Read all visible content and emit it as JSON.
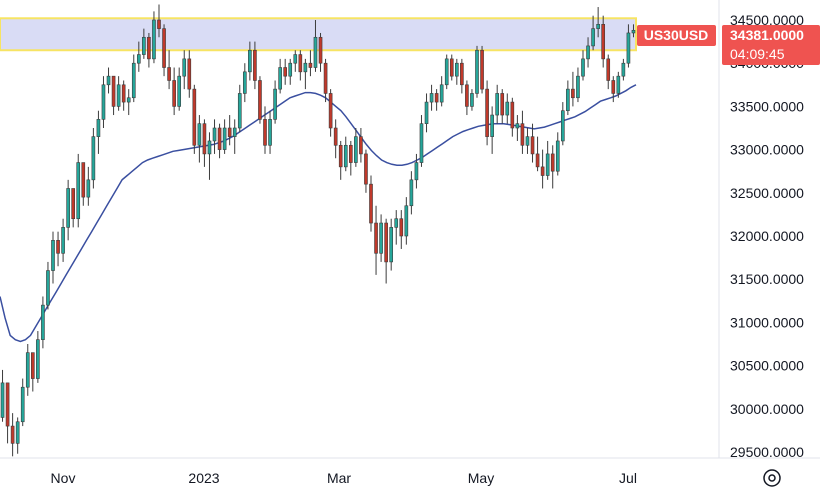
{
  "chart_data": {
    "type": "candlestick",
    "symbol": "US30USD",
    "last_price": "34381.0000",
    "countdown": "04:09:45",
    "y_range": [
      29450,
      34700
    ],
    "y_ticks": [
      "29500.0000",
      "30000.0000",
      "30500.0000",
      "31000.0000",
      "31500.0000",
      "32000.0000",
      "32500.0000",
      "33000.0000",
      "33500.0000",
      "34000.0000",
      "34500.0000"
    ],
    "x_ticks": [
      "Nov",
      "2023",
      "Mar",
      "May",
      "Jul"
    ],
    "highlight_zone": [
      34150,
      34520
    ],
    "colors": {
      "up": "#26a69a",
      "down": "#c0392b",
      "ma": "#3a4fa0",
      "zone_fill": "#d9dcf5",
      "zone_border": "#f7e463",
      "price_label": "#ef5350",
      "ticker_label": "#ef5350"
    },
    "candles": [
      [
        29900,
        30450,
        29850,
        30300
      ],
      [
        30300,
        30300,
        29600,
        29800
      ],
      [
        29800,
        29950,
        29450,
        29600
      ],
      [
        29600,
        29900,
        29480,
        29850
      ],
      [
        29850,
        30350,
        29800,
        30250
      ],
      [
        30250,
        30750,
        30150,
        30650
      ],
      [
        30650,
        30650,
        30200,
        30350
      ],
      [
        30350,
        30900,
        30300,
        30800
      ],
      [
        30800,
        31300,
        30700,
        31200
      ],
      [
        31200,
        31700,
        31150,
        31600
      ],
      [
        31600,
        32050,
        31450,
        31950
      ],
      [
        31950,
        32050,
        31650,
        31800
      ],
      [
        31800,
        32200,
        31700,
        32100
      ],
      [
        32100,
        32650,
        31950,
        32550
      ],
      [
        32550,
        32550,
        32100,
        32200
      ],
      [
        32200,
        32950,
        32100,
        32850
      ],
      [
        32850,
        32850,
        32350,
        32450
      ],
      [
        32450,
        32800,
        32350,
        32650
      ],
      [
        32650,
        33250,
        32550,
        33150
      ],
      [
        33150,
        33450,
        32950,
        33350
      ],
      [
        33350,
        33850,
        33250,
        33750
      ],
      [
        33750,
        33950,
        33650,
        33850
      ],
      [
        33850,
        33850,
        33400,
        33500
      ],
      [
        33500,
        33850,
        33450,
        33750
      ],
      [
        33750,
        33800,
        33450,
        33550
      ],
      [
        33550,
        33700,
        33400,
        33600
      ],
      [
        33600,
        34100,
        33550,
        34000
      ],
      [
        34000,
        34250,
        33900,
        34100
      ],
      [
        34100,
        34400,
        34050,
        34300
      ],
      [
        34300,
        34350,
        33950,
        34050
      ],
      [
        34050,
        34600,
        34000,
        34500
      ],
      [
        34500,
        34680,
        34300,
        34400
      ],
      [
        34400,
        34450,
        33850,
        33950
      ],
      [
        33950,
        34150,
        33700,
        33800
      ],
      [
        33800,
        33950,
        33400,
        33500
      ],
      [
        33500,
        33950,
        33450,
        33850
      ],
      [
        33850,
        34150,
        33700,
        34050
      ],
      [
        34050,
        34150,
        33600,
        33700
      ],
      [
        33700,
        33750,
        32950,
        33050
      ],
      [
        33050,
        33400,
        32850,
        33300
      ],
      [
        33300,
        33350,
        32800,
        32950
      ],
      [
        32950,
        33200,
        32650,
        33100
      ],
      [
        33100,
        33350,
        32950,
        33250
      ],
      [
        33250,
        33300,
        32900,
        33000
      ],
      [
        33000,
        33350,
        32950,
        33250
      ],
      [
        33250,
        33400,
        33050,
        33150
      ],
      [
        33150,
        33350,
        32950,
        33250
      ],
      [
        33250,
        33750,
        33200,
        33650
      ],
      [
        33650,
        34000,
        33550,
        33900
      ],
      [
        33900,
        34250,
        33800,
        34150
      ],
      [
        34150,
        34250,
        33700,
        33800
      ],
      [
        33800,
        33850,
        33300,
        33350
      ],
      [
        33350,
        33500,
        32950,
        33050
      ],
      [
        33050,
        33450,
        32950,
        33350
      ],
      [
        33350,
        33800,
        33300,
        33700
      ],
      [
        33700,
        34050,
        33650,
        33950
      ],
      [
        33950,
        34050,
        33750,
        33850
      ],
      [
        33850,
        34050,
        33750,
        34000
      ],
      [
        34000,
        34150,
        33900,
        34100
      ],
      [
        34100,
        34150,
        33800,
        33900
      ],
      [
        33900,
        34050,
        33700,
        34000
      ],
      [
        34000,
        34150,
        33850,
        33950
      ],
      [
        33950,
        34500,
        33900,
        34300
      ],
      [
        34300,
        34350,
        33900,
        34000
      ],
      [
        34000,
        34050,
        33550,
        33650
      ],
      [
        33650,
        33700,
        33150,
        33250
      ],
      [
        33250,
        33350,
        32900,
        33050
      ],
      [
        33050,
        33100,
        32650,
        32800
      ],
      [
        32800,
        33150,
        32750,
        33050
      ],
      [
        33050,
        33100,
        32700,
        32850
      ],
      [
        32850,
        33250,
        32800,
        33150
      ],
      [
        33150,
        33250,
        32850,
        32950
      ],
      [
        32950,
        33000,
        32500,
        32600
      ],
      [
        32600,
        32700,
        32050,
        32150
      ],
      [
        32150,
        32350,
        31550,
        31800
      ],
      [
        31800,
        32250,
        31700,
        32150
      ],
      [
        32150,
        32200,
        31450,
        31700
      ],
      [
        31700,
        32200,
        31600,
        32100
      ],
      [
        32100,
        32300,
        31900,
        32200
      ],
      [
        32200,
        32300,
        31850,
        32000
      ],
      [
        32000,
        32450,
        31900,
        32350
      ],
      [
        32350,
        32750,
        32250,
        32650
      ],
      [
        32650,
        32950,
        32550,
        32850
      ],
      [
        32850,
        33400,
        32800,
        33300
      ],
      [
        33300,
        33650,
        33200,
        33550
      ],
      [
        33550,
        33750,
        33450,
        33650
      ],
      [
        33650,
        33700,
        33450,
        33550
      ],
      [
        33550,
        33850,
        33500,
        33750
      ],
      [
        33750,
        34100,
        33700,
        34050
      ],
      [
        34050,
        34100,
        33800,
        33850
      ],
      [
        33850,
        34050,
        33750,
        34000
      ],
      [
        34000,
        34050,
        33650,
        33750
      ],
      [
        33750,
        33800,
        33400,
        33500
      ],
      [
        33500,
        33700,
        33450,
        33650
      ],
      [
        33650,
        34200,
        33600,
        34150
      ],
      [
        34150,
        34200,
        33650,
        33700
      ],
      [
        33700,
        33800,
        33050,
        33150
      ],
      [
        33150,
        33500,
        32950,
        33400
      ],
      [
        33400,
        33750,
        33300,
        33650
      ],
      [
        33650,
        33700,
        33300,
        33400
      ],
      [
        33400,
        33650,
        33300,
        33550
      ],
      [
        33550,
        33600,
        33150,
        33250
      ],
      [
        33250,
        33400,
        33100,
        33300
      ],
      [
        33300,
        33450,
        32950,
        33050
      ],
      [
        33050,
        33250,
        32950,
        33150
      ],
      [
        33150,
        33300,
        32850,
        32950
      ],
      [
        32950,
        33150,
        32750,
        32800
      ],
      [
        32800,
        33000,
        32550,
        32700
      ],
      [
        32700,
        33100,
        32650,
        32950
      ],
      [
        32950,
        33050,
        32550,
        32750
      ],
      [
        32750,
        33200,
        32700,
        33100
      ],
      [
        33100,
        33550,
        33050,
        33450
      ],
      [
        33450,
        33800,
        33400,
        33700
      ],
      [
        33700,
        33900,
        33500,
        33600
      ],
      [
        33600,
        33950,
        33550,
        33850
      ],
      [
        33850,
        34150,
        33800,
        34050
      ],
      [
        34050,
        34300,
        33950,
        34200
      ],
      [
        34200,
        34550,
        34150,
        34400
      ],
      [
        34400,
        34650,
        34300,
        34450
      ],
      [
        34450,
        34550,
        33950,
        34050
      ],
      [
        34050,
        34100,
        33700,
        33800
      ],
      [
        33800,
        33850,
        33550,
        33650
      ],
      [
        33650,
        33900,
        33600,
        33850
      ],
      [
        33850,
        34050,
        33800,
        34000
      ],
      [
        34000,
        34450,
        33950,
        34350
      ],
      [
        34350,
        34450,
        34300,
        34381
      ]
    ],
    "ma": [
      31300,
      31050,
      30850,
      30800,
      30780,
      30800,
      30850,
      30950,
      31050,
      31150,
      31250,
      31350,
      31450,
      31550,
      31650,
      31750,
      31850,
      31950,
      32050,
      32150,
      32250,
      32350,
      32450,
      32550,
      32650,
      32700,
      32750,
      32800,
      32850,
      32880,
      32900,
      32920,
      32940,
      32960,
      32980,
      32990,
      33000,
      33010,
      33020,
      33030,
      33040,
      33050,
      33060,
      33080,
      33100,
      33130,
      33160,
      33200,
      33240,
      33280,
      33320,
      33360,
      33400,
      33440,
      33480,
      33520,
      33560,
      33600,
      33620,
      33640,
      33660,
      33660,
      33650,
      33630,
      33600,
      33550,
      33500,
      33450,
      33380,
      33300,
      33220,
      33140,
      33060,
      32990,
      32930,
      32880,
      32850,
      32830,
      32820,
      32820,
      32830,
      32850,
      32880,
      32910,
      32950,
      32990,
      33030,
      33070,
      33110,
      33150,
      33180,
      33210,
      33230,
      33250,
      33270,
      33280,
      33290,
      33300,
      33300,
      33300,
      33290,
      33280,
      33270,
      33260,
      33250,
      33240,
      33250,
      33260,
      33280,
      33300,
      33320,
      33340,
      33360,
      33380,
      33410,
      33440,
      33480,
      33520,
      33560,
      33580,
      33600,
      33620,
      33650,
      33680,
      33720,
      33750
    ]
  }
}
